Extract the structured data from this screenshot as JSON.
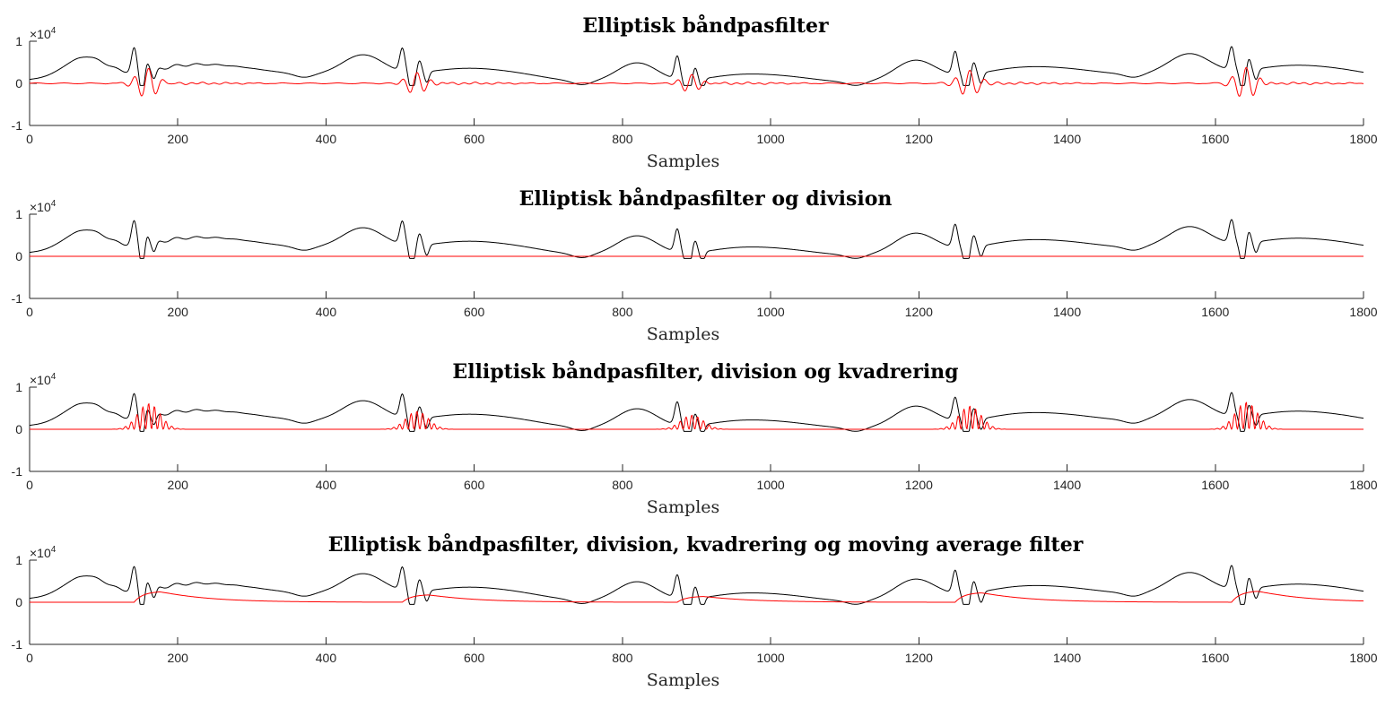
{
  "chart_data": [
    {
      "type": "line",
      "title": "Elliptisk båndpasfilter",
      "xlabel": "Samples",
      "ylabel": "",
      "y_exponent_label": "×10^4",
      "y_exponent_base": "×10",
      "y_exponent_power": "4",
      "xlim": [
        0,
        1800
      ],
      "ylim": [
        -1,
        1
      ],
      "xticks": [
        "0",
        "200",
        "400",
        "600",
        "800",
        "1000",
        "1200",
        "1400",
        "1600",
        "1800"
      ],
      "yticks": [
        "-1",
        "0",
        "1"
      ],
      "grid": false,
      "series": [
        {
          "color": "#000000",
          "kind": "ecg",
          "values_note": ""
        },
        {
          "color": "#ff0000",
          "kind": "bandpass"
        }
      ]
    },
    {
      "type": "line",
      "title": "Elliptisk båndpasfilter og division",
      "xlabel": "Samples",
      "ylabel": "",
      "y_exponent_label": "×10^4",
      "y_exponent_base": "×10",
      "y_exponent_power": "4",
      "xlim": [
        0,
        1800
      ],
      "ylim": [
        -1,
        1
      ],
      "xticks": [
        "0",
        "200",
        "400",
        "600",
        "800",
        "1000",
        "1200",
        "1400",
        "1600",
        "1800"
      ],
      "yticks": [
        "-1",
        "0",
        "1"
      ],
      "grid": false,
      "series": [
        {
          "color": "#000000",
          "kind": "ecg"
        },
        {
          "color": "#ff0000",
          "kind": "flat"
        }
      ]
    },
    {
      "type": "line",
      "title": "Elliptisk båndpasfilter, division og kvadrering",
      "xlabel": "Samples",
      "ylabel": "",
      "y_exponent_label": "×10^4",
      "y_exponent_base": "×10",
      "y_exponent_power": "4",
      "xlim": [
        0,
        1800
      ],
      "ylim": [
        -1,
        1
      ],
      "xticks": [
        "0",
        "200",
        "400",
        "600",
        "800",
        "1000",
        "1200",
        "1400",
        "1600",
        "1800"
      ],
      "yticks": [
        "-1",
        "0",
        "1"
      ],
      "grid": false,
      "series": [
        {
          "color": "#000000",
          "kind": "ecg"
        },
        {
          "color": "#ff0000",
          "kind": "squared"
        }
      ]
    },
    {
      "type": "line",
      "title": "Elliptisk båndpasfilter, division, kvadrering og moving average filter",
      "xlabel": "Samples",
      "ylabel": "",
      "y_exponent_label": "×10^4",
      "y_exponent_base": "×10",
      "y_exponent_power": "4",
      "xlim": [
        0,
        1800
      ],
      "ylim": [
        -1,
        1
      ],
      "xticks": [
        "0",
        "200",
        "400",
        "600",
        "800",
        "1000",
        "1200",
        "1400",
        "1600",
        "1800"
      ],
      "yticks": [
        "-1",
        "0",
        "1"
      ],
      "grid": false,
      "series": [
        {
          "color": "#000000",
          "kind": "ecg"
        },
        {
          "color": "#ff0000",
          "kind": "moving_average"
        }
      ]
    }
  ],
  "beats": [
    {
      "t_wave": 7.5,
      "qrs": 14.1,
      "s1": 15.2,
      "s2": 16.3,
      "amp": 1.0
    },
    {
      "t_wave": 45.0,
      "qrs": 50.3,
      "s1": 51.6,
      "s2": 53.1,
      "amp": 0.7
    },
    {
      "t_wave": 82.0,
      "qrs": 87.4,
      "s1": 88.8,
      "s2": 90.3,
      "amp": 0.55
    },
    {
      "t_wave": 119.5,
      "qrs": 124.9,
      "s1": 126.4,
      "s2": 127.9,
      "amp": 0.9
    },
    {
      "t_wave": 156.5,
      "qrs": 162.2,
      "s1": 163.7,
      "s2": 165.0,
      "amp": 1.05
    }
  ]
}
